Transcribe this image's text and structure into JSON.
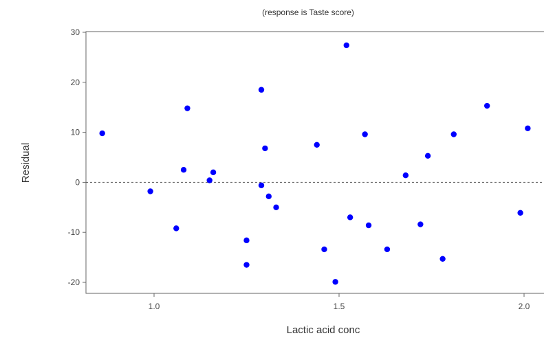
{
  "chart_data": {
    "type": "scatter",
    "title": "",
    "subtitle": "(response is Taste score)",
    "xlabel": "Lactic acid conc",
    "ylabel": "Residual",
    "xlim": [
      0.8,
      2.05
    ],
    "ylim": [
      -22,
      31
    ],
    "x_ticks": [
      1.0,
      1.5,
      2.0
    ],
    "x_tick_labels": [
      "1.0",
      "1.5",
      "2.0"
    ],
    "y_ticks": [
      -20,
      -10,
      0,
      10,
      20,
      30
    ],
    "y_tick_labels": [
      "-20",
      "-10",
      "0",
      "10",
      "20",
      "30"
    ],
    "reference_line": 0,
    "grid": false,
    "point_color": "#0000ff",
    "reference_line_color": "#555555",
    "series": [
      {
        "points": [
          {
            "x": 0.86,
            "y": 9.8
          },
          {
            "x": 0.99,
            "y": -1.8
          },
          {
            "x": 1.06,
            "y": -9.2
          },
          {
            "x": 1.08,
            "y": 2.5
          },
          {
            "x": 1.09,
            "y": 14.8
          },
          {
            "x": 1.15,
            "y": 0.4
          },
          {
            "x": 1.16,
            "y": 2.0
          },
          {
            "x": 1.25,
            "y": -11.6
          },
          {
            "x": 1.25,
            "y": -16.5
          },
          {
            "x": 1.29,
            "y": 18.5
          },
          {
            "x": 1.29,
            "y": -0.6
          },
          {
            "x": 1.3,
            "y": 6.8
          },
          {
            "x": 1.31,
            "y": -2.8
          },
          {
            "x": 1.33,
            "y": -5.0
          },
          {
            "x": 1.44,
            "y": 7.5
          },
          {
            "x": 1.46,
            "y": -13.4
          },
          {
            "x": 1.49,
            "y": -19.9
          },
          {
            "x": 1.52,
            "y": 27.4
          },
          {
            "x": 1.53,
            "y": -7.0
          },
          {
            "x": 1.57,
            "y": 9.6
          },
          {
            "x": 1.58,
            "y": -8.6
          },
          {
            "x": 1.63,
            "y": -13.4
          },
          {
            "x": 1.68,
            "y": 1.4
          },
          {
            "x": 1.72,
            "y": -8.4
          },
          {
            "x": 1.74,
            "y": 5.3
          },
          {
            "x": 1.78,
            "y": -15.3
          },
          {
            "x": 1.81,
            "y": 9.6
          },
          {
            "x": 1.9,
            "y": 15.3
          },
          {
            "x": 1.99,
            "y": -6.1
          },
          {
            "x": 2.01,
            "y": 10.8
          }
        ]
      }
    ]
  }
}
